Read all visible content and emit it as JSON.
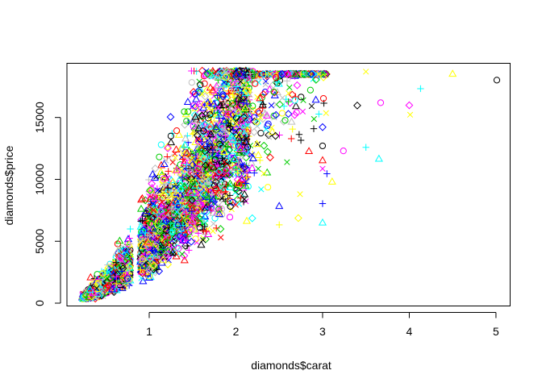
{
  "chart_data": {
    "type": "scatter",
    "title": "",
    "xlabel": "diamonds$carat",
    "ylabel": "diamonds$price",
    "xlim": [
      0.2,
      5.01
    ],
    "ylim": [
      326,
      18823
    ],
    "xticks": [
      1,
      2,
      3,
      4,
      5
    ],
    "yticks": [
      0,
      5000,
      10000,
      15000
    ],
    "grid": false,
    "legend": "none",
    "palette": [
      "#000000",
      "#FF0000",
      "#00CD00",
      "#0000FF",
      "#00FFFF",
      "#FF00FF",
      "#FFFF00",
      "#BEBEBE"
    ],
    "series_description": "Dense cloud of ~54,000 points; marker shape and colour cycle per row (R pch/col recycling).",
    "points": [
      [
        5.01,
        18018,
        0
      ],
      [
        4.5,
        18531,
        6
      ],
      [
        4.13,
        17329,
        4
      ],
      [
        4.01,
        15223,
        6
      ],
      [
        4.0,
        15984,
        5
      ],
      [
        3.67,
        16193,
        5
      ],
      [
        3.65,
        11668,
        4
      ],
      [
        3.5,
        12587,
        4
      ],
      [
        3.5,
        18701,
        6
      ],
      [
        3.4,
        15964,
        0
      ],
      [
        3.24,
        12300,
        5
      ],
      [
        3.11,
        9823,
        6
      ],
      [
        3.05,
        10453,
        3
      ],
      [
        3.04,
        15354,
        6
      ],
      [
        3.01,
        18242,
        6
      ],
      [
        3.01,
        16538,
        1
      ],
      [
        3.0,
        6512,
        4
      ],
      [
        3.0,
        8040,
        3
      ],
      [
        3.0,
        10863,
        5
      ],
      [
        3.0,
        14220,
        3
      ],
      [
        3.0,
        12706,
        0
      ],
      [
        3.0,
        11548,
        1
      ],
      [
        2.75,
        13156,
        0
      ],
      [
        2.74,
        8807,
        6
      ],
      [
        2.72,
        6870,
        6
      ],
      [
        2.68,
        16380,
        4
      ],
      [
        2.5,
        7854,
        3
      ],
      [
        2.5,
        6329,
        6
      ]
    ]
  }
}
